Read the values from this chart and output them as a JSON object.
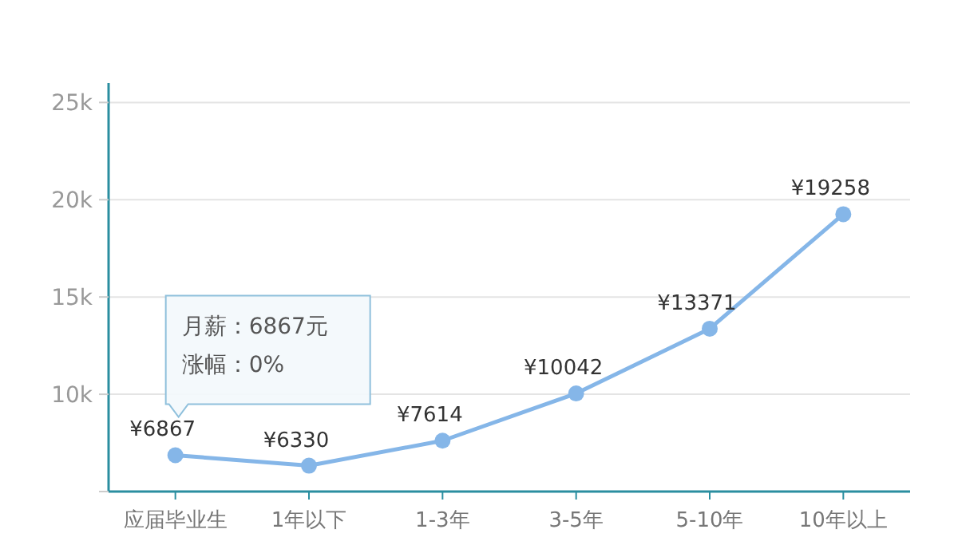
{
  "chart_data": {
    "type": "line",
    "categories": [
      "应届毕业生",
      "1年以下",
      "1-3年",
      "3-5年",
      "5-10年",
      "10年以上"
    ],
    "series": [
      {
        "color": "#85b6e8",
        "values": [
          6867,
          6330,
          7614,
          10042,
          13371,
          19258
        ],
        "value_labels": [
          "¥6867",
          "¥6330",
          "¥7614",
          "¥10042",
          "¥13371",
          "¥19258"
        ]
      }
    ],
    "ylim": [
      5000,
      26000
    ],
    "yticks": [
      {
        "value": 5000,
        "label": null
      },
      {
        "value": 10000,
        "label": "10k"
      },
      {
        "value": 15000,
        "label": "15k"
      },
      {
        "value": 20000,
        "label": "20k"
      },
      {
        "value": 25000,
        "label": "25k"
      }
    ],
    "grid": "y",
    "marker": "circle",
    "line_style": "solid",
    "annotations": [
      "月薪：6867元",
      "涨幅：0%"
    ]
  }
}
